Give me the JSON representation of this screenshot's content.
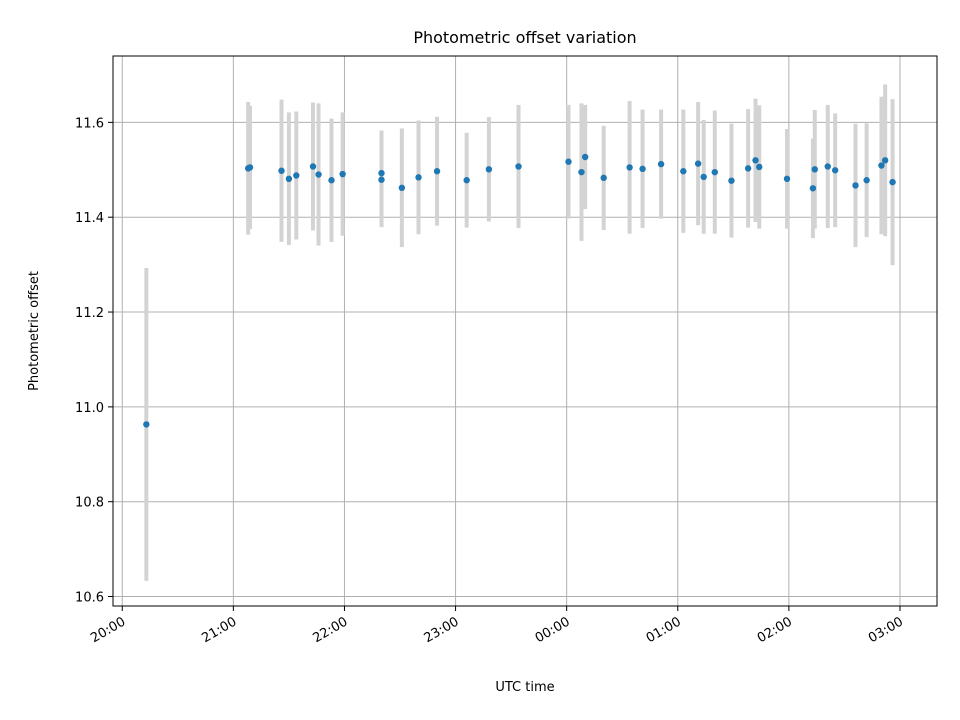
{
  "chart_data": {
    "type": "scatter",
    "title": "Photometric offset variation",
    "xlabel": "UTC time",
    "ylabel": "Photometric offset",
    "xlim": [
      "19:55",
      "03:20"
    ],
    "ylim": [
      10.58,
      11.74
    ],
    "grid": true,
    "x_ticks": [
      "20:00",
      "21:00",
      "22:00",
      "23:00",
      "00:00",
      "01:00",
      "02:00",
      "03:00"
    ],
    "y_ticks": [
      "10.6",
      "10.8",
      "11.0",
      "11.2",
      "11.4",
      "11.6"
    ],
    "colors": {
      "point": "#1f77b4",
      "errorbar": "#d3d3d3",
      "grid": "#b0b0b0"
    },
    "series": [
      {
        "x": [
          "20:13",
          "21:08",
          "21:09",
          "21:26",
          "21:30",
          "21:34",
          "21:43",
          "21:46",
          "21:53",
          "21:59",
          "22:20",
          "22:20",
          "22:31",
          "22:40",
          "22:50",
          "23:06",
          "23:18",
          "23:34",
          "00:01",
          "00:08",
          "00:10",
          "00:20",
          "00:34",
          "00:41",
          "00:51",
          "01:03",
          "01:11",
          "01:14",
          "01:20",
          "01:29",
          "01:38",
          "01:42",
          "01:44",
          "01:59",
          "02:13",
          "02:14",
          "02:21",
          "02:25",
          "02:36",
          "02:42",
          "02:50",
          "02:52",
          "02:56"
        ],
        "y": [
          10.963,
          11.503,
          11.505,
          11.498,
          11.481,
          11.488,
          11.507,
          11.49,
          11.478,
          11.491,
          11.479,
          11.493,
          11.462,
          11.484,
          11.497,
          11.478,
          11.501,
          11.507,
          11.517,
          11.495,
          11.527,
          11.483,
          11.505,
          11.502,
          11.512,
          11.497,
          11.513,
          11.485,
          11.495,
          11.477,
          11.503,
          11.52,
          11.506,
          11.481,
          11.461,
          11.501,
          11.507,
          11.499,
          11.467,
          11.478,
          11.509,
          11.52,
          11.474
        ],
        "yerr": [
          0.33,
          0.14,
          0.13,
          0.15,
          0.14,
          0.135,
          0.135,
          0.15,
          0.13,
          0.13,
          0.1,
          0.09,
          0.125,
          0.12,
          0.115,
          0.1,
          0.11,
          0.13,
          0.12,
          0.145,
          0.11,
          0.11,
          0.14,
          0.125,
          0.115,
          0.13,
          0.13,
          0.12,
          0.13,
          0.12,
          0.125,
          0.13,
          0.13,
          0.105,
          0.105,
          0.125,
          0.13,
          0.12,
          0.13,
          0.12,
          0.145,
          0.16,
          0.175
        ]
      }
    ]
  }
}
